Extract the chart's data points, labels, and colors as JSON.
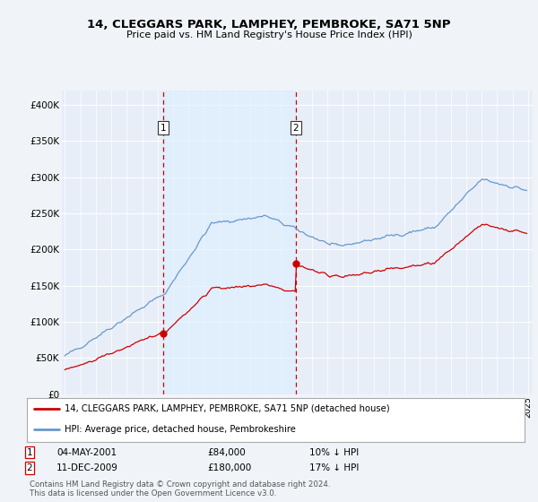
{
  "title": "14, CLEGGARS PARK, LAMPHEY, PEMBROKE, SA71 5NP",
  "subtitle": "Price paid vs. HM Land Registry's House Price Index (HPI)",
  "legend_label_red": "14, CLEGGARS PARK, LAMPHEY, PEMBROKE, SA71 5NP (detached house)",
  "legend_label_blue": "HPI: Average price, detached house, Pembrokeshire",
  "transaction1_date": "04-MAY-2001",
  "transaction1_price": "£84,000",
  "transaction1_hpi": "10% ↓ HPI",
  "transaction1_year": 2001.37,
  "transaction1_value": 84000,
  "transaction2_date": "11-DEC-2009",
  "transaction2_price": "£180,000",
  "transaction2_hpi": "17% ↓ HPI",
  "transaction2_year": 2009.96,
  "transaction2_value": 180000,
  "vline1_x": 2001.37,
  "vline2_x": 2009.96,
  "color_red": "#cc0000",
  "color_blue": "#6699cc",
  "color_blue_fill": "#ddeeff",
  "color_vline": "#cc0000",
  "background_color": "#f0f4f8",
  "plot_bg_color": "#e8eef8",
  "footer_text": "Contains HM Land Registry data © Crown copyright and database right 2024.\nThis data is licensed under the Open Government Licence v3.0.",
  "ylim": [
    0,
    420000
  ],
  "yticks": [
    0,
    50000,
    100000,
    150000,
    200000,
    250000,
    300000,
    350000,
    400000
  ],
  "ytick_labels": [
    "£0",
    "£50K",
    "£100K",
    "£150K",
    "£200K",
    "£250K",
    "£300K",
    "£350K",
    "£400K"
  ],
  "xmin": 1994.8,
  "xmax": 2025.3
}
